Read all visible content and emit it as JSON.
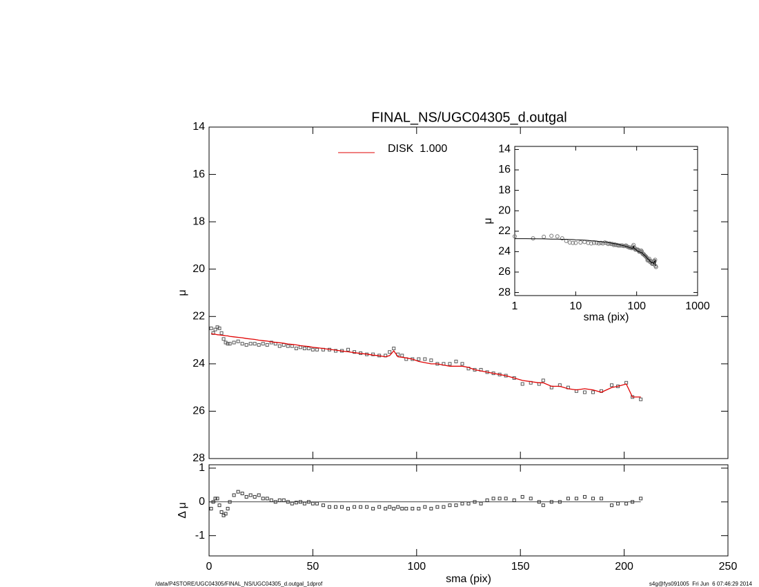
{
  "chart_data": [
    {
      "type": "scatter",
      "title": "FINAL_NS/UGC04305_d.outgal",
      "ylabel": "μ",
      "x": [
        1,
        2,
        3,
        4,
        5,
        6,
        7,
        8,
        9,
        10,
        12,
        14,
        16,
        18,
        20,
        22,
        24,
        26,
        28,
        30,
        32,
        34,
        36,
        38,
        40,
        42,
        44,
        46,
        48,
        50,
        52,
        55,
        58,
        61,
        64,
        67,
        70,
        73,
        76,
        79,
        82,
        85,
        87,
        89,
        91,
        93,
        95,
        98,
        101,
        104,
        107,
        110,
        113,
        116,
        119,
        122,
        125,
        128,
        131,
        134,
        137,
        140,
        143,
        147,
        151,
        155,
        159,
        161,
        165,
        169,
        173,
        177,
        181,
        185,
        189,
        194,
        197,
        201,
        204,
        208
      ],
      "points": {
        "color": "#555555",
        "values": [
          22.5,
          22.7,
          22.55,
          22.45,
          22.5,
          22.7,
          22.95,
          23.1,
          23.15,
          23.15,
          23.1,
          23.05,
          23.15,
          23.2,
          23.15,
          23.15,
          23.2,
          23.15,
          23.2,
          23.1,
          23.15,
          23.25,
          23.2,
          23.25,
          23.25,
          23.35,
          23.3,
          23.35,
          23.35,
          23.4,
          23.4,
          23.4,
          23.4,
          23.45,
          23.45,
          23.4,
          23.5,
          23.55,
          23.6,
          23.6,
          23.65,
          23.65,
          23.5,
          23.35,
          23.6,
          23.65,
          23.8,
          23.8,
          23.8,
          23.8,
          23.85,
          24.0,
          24.0,
          24.0,
          23.9,
          24.0,
          24.2,
          24.25,
          24.25,
          24.35,
          24.4,
          24.45,
          24.5,
          24.6,
          24.85,
          24.8,
          24.85,
          24.7,
          25.0,
          24.9,
          25.0,
          25.15,
          25.2,
          25.2,
          25.15,
          24.9,
          24.95,
          24.8,
          25.4,
          25.5
        ]
      },
      "series": [
        {
          "name": "DISK  1.000",
          "color": "#e00000",
          "values": [
            22.73,
            22.74,
            22.75,
            22.77,
            22.78,
            22.79,
            22.8,
            22.81,
            22.82,
            22.84,
            22.86,
            22.88,
            22.9,
            22.93,
            22.95,
            22.97,
            23.0,
            23.02,
            23.04,
            23.07,
            23.09,
            23.11,
            23.13,
            23.16,
            23.18,
            23.2,
            23.23,
            23.25,
            23.27,
            23.3,
            23.32,
            23.35,
            23.39,
            23.42,
            23.46,
            23.49,
            23.53,
            23.56,
            23.59,
            23.63,
            23.66,
            23.7,
            23.65,
            23.45,
            23.7,
            23.72,
            23.75,
            23.8,
            23.9,
            23.95,
            24.0,
            24.0,
            24.05,
            24.1,
            24.1,
            24.1,
            24.15,
            24.25,
            24.3,
            24.35,
            24.4,
            24.45,
            24.5,
            24.6,
            24.7,
            24.75,
            24.8,
            24.8,
            24.95,
            24.95,
            25.05,
            25.1,
            25.05,
            25.1,
            25.2,
            25.0,
            24.95,
            24.85,
            25.4,
            25.4
          ]
        }
      ],
      "xlim": [
        0,
        250
      ],
      "xticks": [
        0,
        50,
        100,
        150,
        200,
        250
      ],
      "ylim": [
        14,
        28
      ],
      "yticks": [
        14,
        16,
        18,
        20,
        22,
        24,
        26,
        28
      ],
      "y_inverted": true,
      "legend": "top"
    },
    {
      "type": "scatter",
      "xlabel": "sma (pix)",
      "ylabel": "Δ μ",
      "x": [
        1,
        2,
        3,
        4,
        5,
        6,
        7,
        8,
        9,
        10,
        12,
        14,
        16,
        18,
        20,
        22,
        24,
        26,
        28,
        30,
        32,
        34,
        36,
        38,
        40,
        42,
        44,
        46,
        48,
        50,
        52,
        55,
        58,
        61,
        64,
        67,
        70,
        73,
        76,
        79,
        82,
        85,
        87,
        89,
        91,
        93,
        95,
        98,
        101,
        104,
        107,
        110,
        113,
        116,
        119,
        122,
        125,
        128,
        131,
        134,
        137,
        140,
        143,
        147,
        151,
        155,
        159,
        161,
        165,
        169,
        173,
        177,
        181,
        185,
        189,
        194,
        197,
        201,
        204,
        208
      ],
      "values": [
        -0.2,
        0,
        0.1,
        0.1,
        -0.1,
        -0.3,
        -0.4,
        -0.35,
        -0.2,
        0,
        0.2,
        0.3,
        0.25,
        0.15,
        0.2,
        0.15,
        0.2,
        0.1,
        0.1,
        0.05,
        0,
        0.05,
        0.05,
        0,
        -0.05,
        -0.02,
        0,
        -0.05,
        0,
        -0.05,
        -0.05,
        -0.1,
        -0.15,
        -0.15,
        -0.15,
        -0.2,
        -0.15,
        -0.15,
        -0.15,
        -0.2,
        -0.15,
        -0.2,
        -0.15,
        -0.2,
        -0.15,
        -0.2,
        -0.2,
        -0.2,
        -0.2,
        -0.15,
        -0.2,
        -0.15,
        -0.15,
        -0.1,
        -0.1,
        -0.05,
        -0.05,
        0,
        -0.05,
        0.05,
        0.1,
        0.1,
        0.1,
        0.05,
        0.15,
        0.1,
        0,
        -0.1,
        0,
        0,
        0.1,
        0.1,
        0.15,
        0.1,
        0.1,
        -0.1,
        -0.05,
        -0.05,
        0,
        0.1
      ],
      "color": "#333333",
      "hline": 0,
      "xlim": [
        0,
        250
      ],
      "xticks": [
        0,
        50,
        100,
        150,
        200,
        250
      ],
      "ylim": [
        -1.6,
        1.1
      ],
      "yticks": [
        -1,
        0,
        1
      ]
    },
    {
      "type": "scatter",
      "xlabel": "sma (pix)",
      "ylabel": "μ",
      "xlog": true,
      "xlim": [
        1,
        1000
      ],
      "xticks": [
        1,
        10,
        100,
        1000
      ],
      "ylim": [
        13.7,
        28.3
      ],
      "yticks": [
        14,
        16,
        18,
        20,
        22,
        24,
        26,
        28
      ],
      "y_inverted": true,
      "line_color": "#000000",
      "point_color": "#777777"
    }
  ],
  "footer": {
    "left": "/data/P4STORE/UGC04305/FINAL_NS/UGC04305_d.outgal_1dprof",
    "right": "s4g@fys091005  Fri Jun  6 07:46:29 2014"
  }
}
